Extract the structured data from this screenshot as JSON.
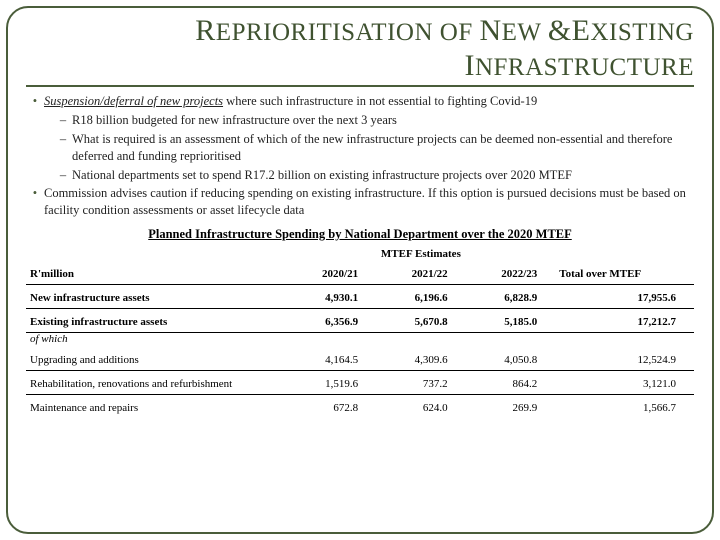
{
  "title": {
    "w1a": "R",
    "w1b": "EPRIORITISATION",
    "w2a": "OF",
    "w3a": "N",
    "w3b": "EW",
    "amp": "&",
    "w4a": "E",
    "w4b": "XISTING",
    "w5a": "I",
    "w5b": "NFRASTRUCTURE"
  },
  "bullets": {
    "l1_lead": "Suspension/deferral of new projects",
    "l1_rest": " where such infrastructure in not essential to fighting Covid-19",
    "l1a": "R18 billion budgeted for new infrastructure over the next 3 years",
    "l1b": "What is required is an assessment of which of the new infrastructure projects can be deemed non-essential and therefore deferred and funding reprioritised",
    "l1c": "National departments set to spend R17.2 billion on existing infrastructure projects over 2020 MTEF",
    "l2": "Commission advises caution if reducing spending on existing infrastructure. If this option is pursued decisions must be based on facility condition assessments or asset lifecycle data"
  },
  "table": {
    "title": "Planned Infrastructure Spending by National Department over the 2020 MTEF",
    "header": {
      "rowlabel": "R'million",
      "estimates": "MTEF Estimates",
      "y1": "2020/21",
      "y2": "2021/22",
      "y3": "2022/23",
      "total": "Total over MTEF"
    },
    "rows": {
      "new_assets": {
        "label": "New infrastructure assets",
        "y1": "4,930.1",
        "y2": "6,196.6",
        "y3": "6,828.9",
        "total": "17,955.6"
      },
      "existing_assets": {
        "label": "Existing infrastructure assets",
        "ofwhich": "of which",
        "y1": "6,356.9",
        "y2": "5,670.8",
        "y3": "5,185.0",
        "total": "17,212.7"
      },
      "upgrading": {
        "label": "Upgrading and additions",
        "y1": "4,164.5",
        "y2": "4,309.6",
        "y3": "4,050.8",
        "total": "12,524.9"
      },
      "rehab": {
        "label": "Rehabilitation, renovations and refurbishment",
        "y1": "1,519.6",
        "y2": "737.2",
        "y3": "864.2",
        "total": "3,121.0"
      },
      "maint": {
        "label": "Maintenance and repairs",
        "y1": "672.8",
        "y2": "624.0",
        "y3": "269.9",
        "total": "1,566.7"
      }
    }
  }
}
